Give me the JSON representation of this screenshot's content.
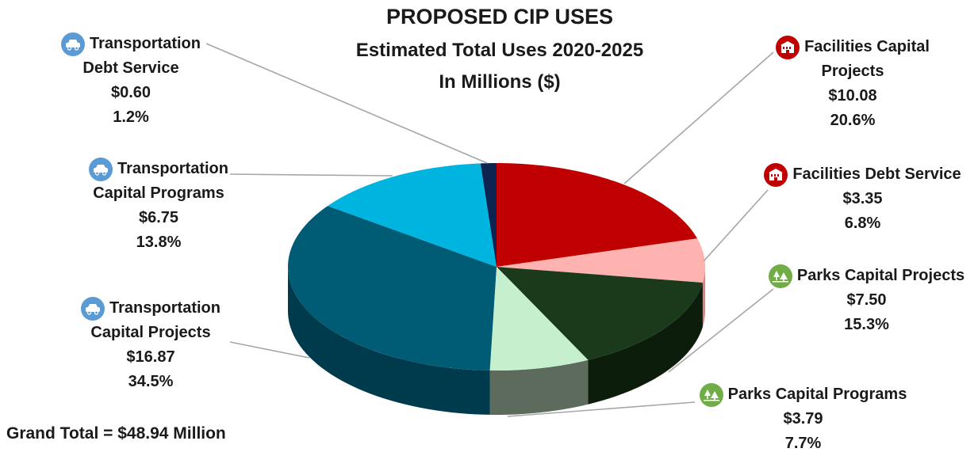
{
  "title": "PROPOSED CIP USES",
  "subtitle": "Estimated Total Uses 2020-2025",
  "unit_line": "In Millions ($)",
  "grand_total": "Grand Total = $48.94 Million",
  "chart_data": {
    "type": "pie",
    "style": "3d",
    "title": "PROPOSED CIP USES",
    "subtitle": "Estimated Total Uses 2020-2025",
    "units": "In Millions ($)",
    "slices": [
      {
        "name": "Facilities Capital Projects",
        "value": 10.08,
        "percent": 20.6,
        "color": "#c00000",
        "side": "#8b0000",
        "icon": "building-icon",
        "icon_color": "#c00000",
        "name_lines": [
          "Facilities Capital",
          "Projects"
        ],
        "value_label": "$10.08",
        "percent_label": "20.6%"
      },
      {
        "name": "Facilities Debt Service",
        "value": 3.35,
        "percent": 6.8,
        "color": "#ffb3b0",
        "side": "#c98b88",
        "icon": "building-icon",
        "icon_color": "#c00000",
        "name_lines": [
          "Facilities Debt Service"
        ],
        "value_label": "$3.35",
        "percent_label": "6.8%"
      },
      {
        "name": "Parks Capital Projects",
        "value": 7.5,
        "percent": 15.3,
        "color": "#1b3a1b",
        "side": "#0c1d0c",
        "icon": "trees-icon",
        "icon_color": "#70ad47",
        "name_lines": [
          "Parks Capital Projects"
        ],
        "value_label": "$7.50",
        "percent_label": "15.3%"
      },
      {
        "name": "Parks Capital Programs",
        "value": 3.79,
        "percent": 7.7,
        "color": "#c6efce",
        "side": "#5d6b5d",
        "icon": "trees-icon",
        "icon_color": "#70ad47",
        "name_lines": [
          "Parks Capital Programs"
        ],
        "value_label": "$3.79",
        "percent_label": "7.7%"
      },
      {
        "name": "Transportation Capital Projects",
        "value": 16.87,
        "percent": 34.5,
        "color": "#005b75",
        "side": "#003a4d",
        "icon": "car-icon",
        "icon_color": "#5b9bd5",
        "name_lines": [
          "Transportation",
          "Capital Projects"
        ],
        "value_label": "$16.87",
        "percent_label": "34.5%"
      },
      {
        "name": "Transportation Capital Programs",
        "value": 6.75,
        "percent": 13.8,
        "color": "#00b4e0",
        "side": "#0086a8",
        "icon": "car-icon",
        "icon_color": "#5b9bd5",
        "name_lines": [
          "Transportation",
          "Capital Programs"
        ],
        "value_label": "$6.75",
        "percent_label": "13.8%"
      },
      {
        "name": "Transportation Debt Service",
        "value": 0.6,
        "percent": 1.2,
        "color": "#0d2350",
        "side": "#081535",
        "icon": "car-icon",
        "icon_color": "#5b9bd5",
        "name_lines": [
          "Transportation",
          "Debt Service"
        ],
        "value_label": "$0.60",
        "percent_label": "1.2%"
      }
    ],
    "total": 48.94
  }
}
